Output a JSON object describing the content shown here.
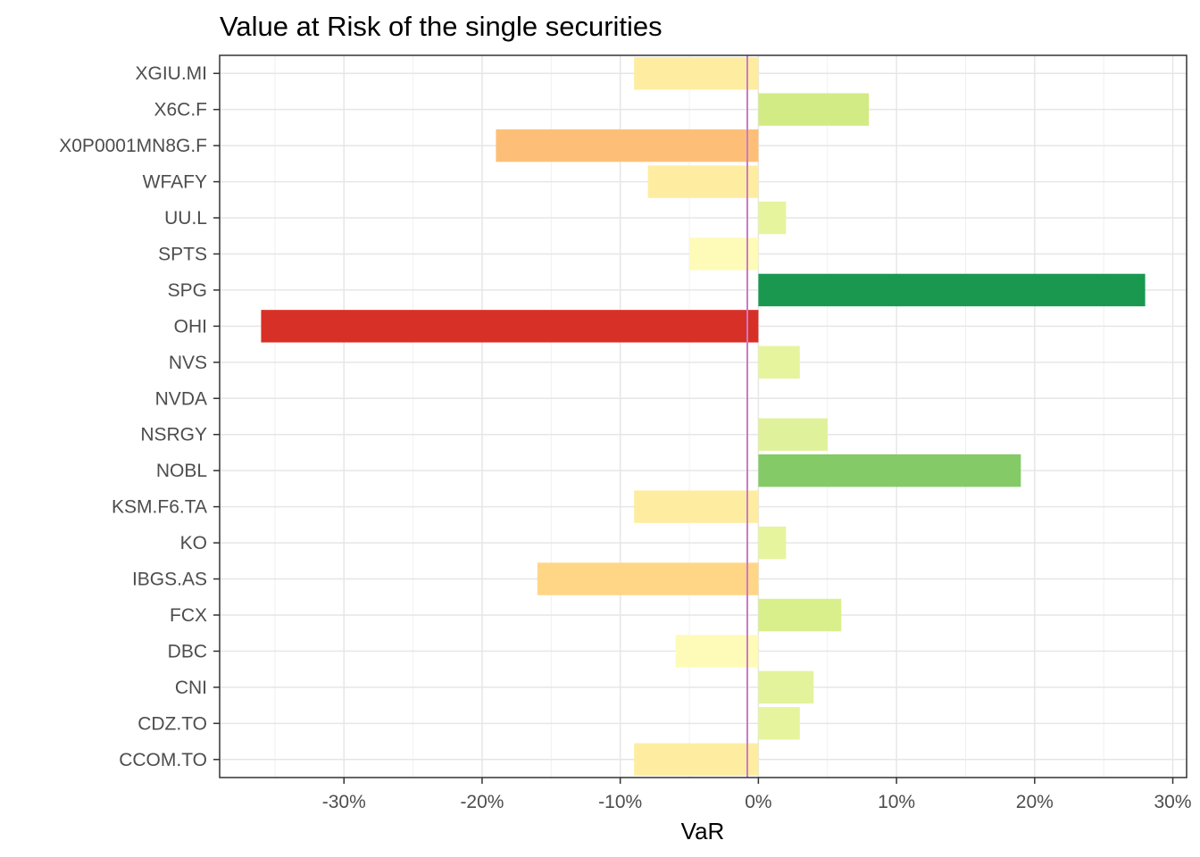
{
  "chart_data": {
    "type": "bar",
    "orientation": "horizontal",
    "title": "Value at Risk of the single securities",
    "xlabel": "VaR",
    "ylabel": "",
    "xlim": [
      -0.39,
      0.31
    ],
    "x_ticks": [
      -0.3,
      -0.2,
      -0.1,
      0,
      0.1,
      0.2,
      0.3
    ],
    "x_tick_labels": [
      "-30%",
      "-20%",
      "-10%",
      "0%",
      "10%",
      "20%",
      "30%"
    ],
    "categories": [
      "XGIU.MI",
      "X6C.F",
      "X0P0001MN8G.F",
      "WFAFY",
      "UU.L",
      "SPTS",
      "SPG",
      "OHI",
      "NVS",
      "NVDA",
      "NSRGY",
      "NOBL",
      "KSM.F6.TA",
      "KO",
      "IBGS.AS",
      "FCX",
      "DBC",
      "CNI",
      "CDZ.TO",
      "CCOM.TO"
    ],
    "values": [
      -0.09,
      0.08,
      -0.19,
      -0.08,
      0.02,
      -0.05,
      0.28,
      -0.36,
      0.03,
      0.0,
      0.05,
      0.19,
      -0.09,
      0.02,
      -0.16,
      0.06,
      -0.06,
      0.04,
      0.03,
      -0.09
    ],
    "colors": [
      "#FEEDA1",
      "#D3EB84",
      "#FDBF78",
      "#FEEDA1",
      "#E6F49D",
      "#FEFBB9",
      "#1A9850",
      "#D73027",
      "#E6F49D",
      "#FFFFBF",
      "#DFF19A",
      "#84CA66",
      "#FEEDA1",
      "#E6F49D",
      "#FED686",
      "#D9EF8B",
      "#FEFBB9",
      "#E2F39C",
      "#E6F49D",
      "#FEEDA1"
    ],
    "reference_line": {
      "x": -0.008,
      "color": "#CC79C7"
    },
    "grid": true,
    "legend": "none"
  }
}
